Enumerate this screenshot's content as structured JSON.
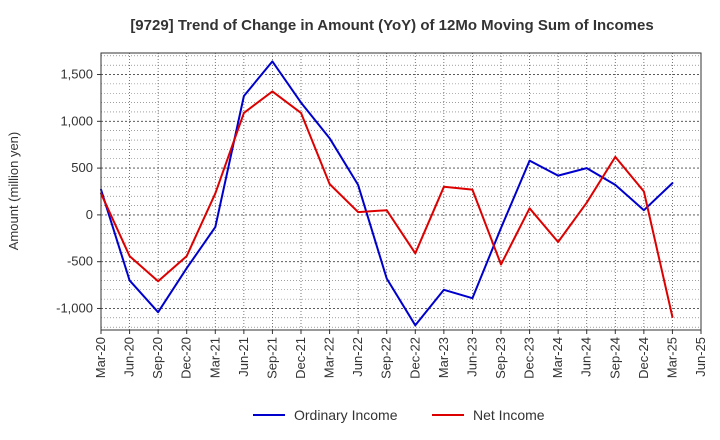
{
  "chart_data": {
    "type": "line",
    "title": "[9729]  Trend of Change in Amount (YoY) of 12Mo Moving Sum of Incomes",
    "xlabel": "",
    "ylabel": "Amount (million yen)",
    "ylim": [
      -1230,
      1730
    ],
    "yticks": [
      -1000,
      -500,
      0,
      500,
      1000,
      1500
    ],
    "ytick_labels": [
      "-1,000",
      "-500",
      "0",
      "500",
      "1,000",
      "1,500"
    ],
    "categories": [
      "Mar-20",
      "Jun-20",
      "Sep-20",
      "Dec-20",
      "Mar-21",
      "Jun-21",
      "Sep-21",
      "Dec-21",
      "Mar-22",
      "Jun-22",
      "Sep-22",
      "Dec-22",
      "Mar-23",
      "Jun-23",
      "Sep-23",
      "Dec-23",
      "Mar-24",
      "Jun-24",
      "Sep-24",
      "Dec-24",
      "Mar-25",
      "Jun-25"
    ],
    "grid": true,
    "legend_position": "bottom-center",
    "series": [
      {
        "name": "Ordinary Income",
        "color": "#0000cc",
        "values": [
          270,
          -700,
          -1040,
          -570,
          -130,
          1270,
          1640,
          1200,
          820,
          320,
          -680,
          -1180,
          -800,
          -890,
          -140,
          580,
          420,
          500,
          320,
          50,
          340,
          null
        ]
      },
      {
        "name": "Net Income",
        "color": "#dd0000",
        "values": [
          230,
          -440,
          -710,
          -440,
          230,
          1090,
          1320,
          1090,
          330,
          30,
          50,
          -410,
          300,
          270,
          -530,
          70,
          -290,
          130,
          620,
          250,
          -1090,
          null
        ]
      }
    ]
  }
}
